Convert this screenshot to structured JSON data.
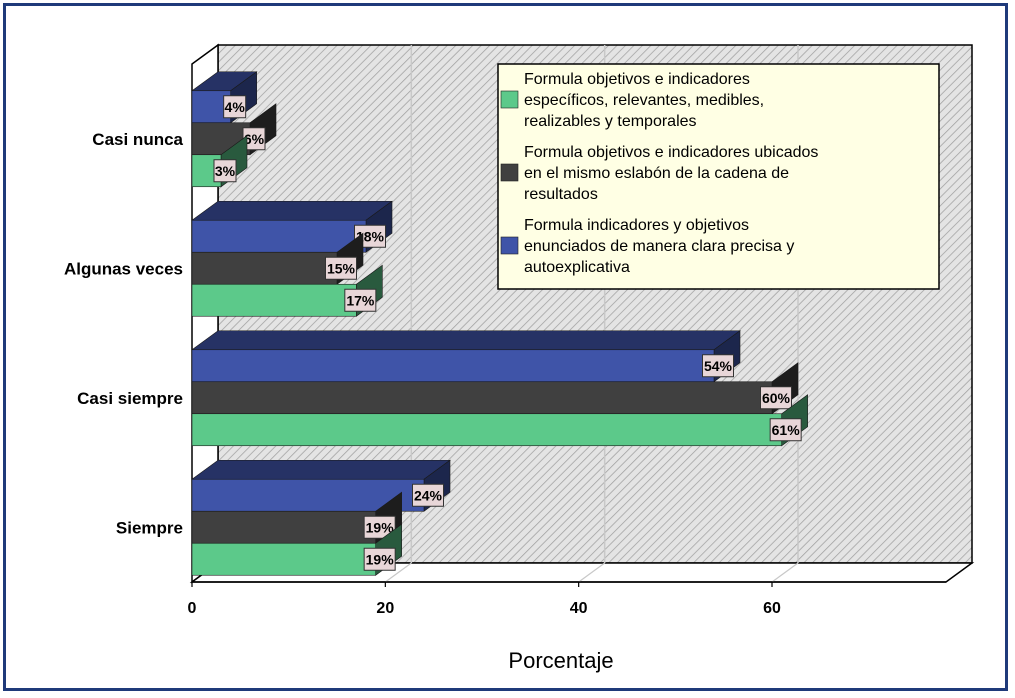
{
  "chart_data": {
    "type": "bar",
    "orientation": "horizontal",
    "three_d": true,
    "categories": [
      "Casi nunca",
      "Algunas veces",
      "Casi siempre",
      "Siempre"
    ],
    "series": [
      {
        "name": "Formula indicadores y objetivos enunciados de manera clara precisa y autoexplicativa",
        "legend_lines": [
          "Formula indicadores y objetivos",
          "enunciados de manera clara precisa y",
          "autoexplicativa"
        ],
        "values": [
          4,
          18,
          54,
          24
        ],
        "labels": [
          "4%",
          "18%",
          "54%",
          "24%"
        ],
        "color": "#3f54a8"
      },
      {
        "name": "Formula objetivos e indicadores ubicados en el mismo eslabón de la cadena de resultados",
        "legend_lines": [
          "Formula objetivos e indicadores ubicados",
          "en el mismo eslabón de la cadena de",
          "resultados"
        ],
        "values": [
          6,
          15,
          60,
          19
        ],
        "labels": [
          "6%",
          "15%",
          "60%",
          "19%"
        ],
        "color": "#404040"
      },
      {
        "name": "Formula objetivos e indicadores específicos, relevantes, medibles, realizables y temporales",
        "legend_lines": [
          "Formula objetivos e indicadores",
          "específicos, relevantes, medibles,",
          "realizables y temporales"
        ],
        "values": [
          3,
          17,
          61,
          19
        ],
        "labels": [
          "3%",
          "17%",
          "61%",
          "19%"
        ],
        "color": "#5cc98a"
      }
    ],
    "legend_order": [
      2,
      1,
      0
    ],
    "xlabel": "Porcentaje",
    "ylabel": "",
    "xlim": [
      0,
      78
    ],
    "xticks": [
      0,
      20,
      40,
      60
    ],
    "grid": true,
    "legend_position": "top-right"
  }
}
